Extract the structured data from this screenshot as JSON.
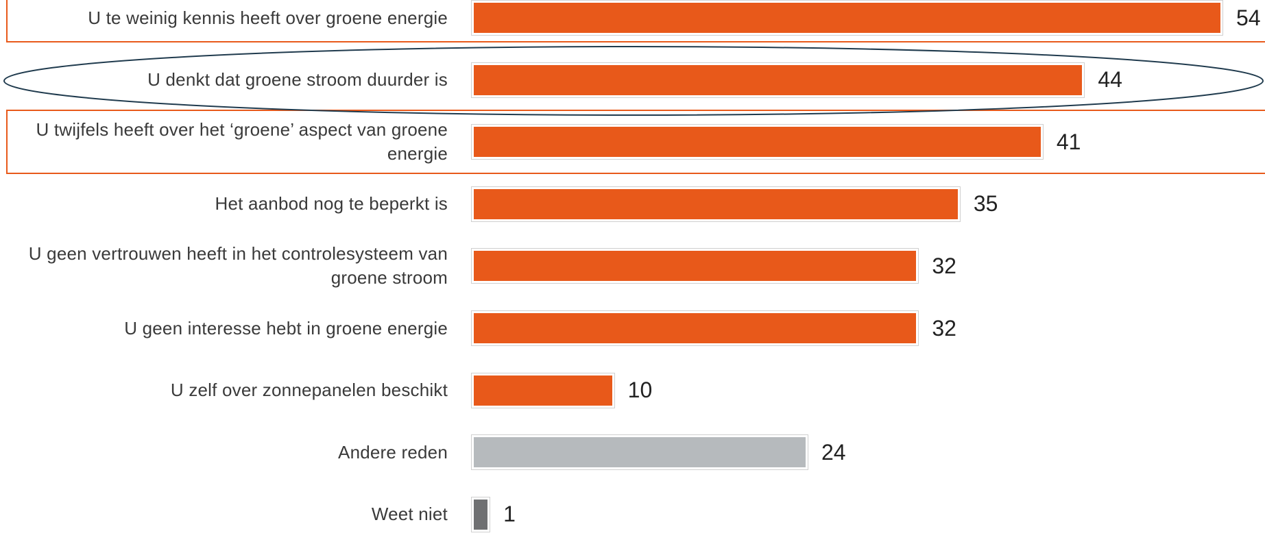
{
  "chart_data": {
    "type": "bar",
    "orientation": "horizontal",
    "categories": [
      "U te weinig kennis heeft over groene energie",
      "U denkt dat groene stroom duurder is",
      "U twijfels heeft over het ‘groene’ aspect van groene energie",
      "Het aanbod nog te beperkt is",
      "U geen vertrouwen heeft in het controlesysteem van groene stroom",
      "U geen interesse hebt in groene energie",
      "U zelf over zonnepanelen beschikt",
      "Andere reden",
      "Weet niet"
    ],
    "values": [
      54,
      44,
      41,
      35,
      32,
      32,
      10,
      24,
      1
    ],
    "colors": [
      "#e8591a",
      "#e8591a",
      "#e8591a",
      "#e8591a",
      "#e8591a",
      "#e8591a",
      "#e8591a",
      "#b6babd",
      "#6f7072"
    ]
  }
}
